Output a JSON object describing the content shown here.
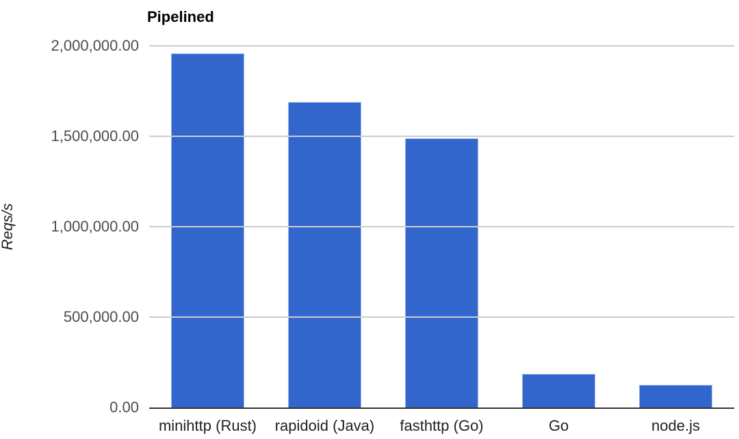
{
  "chart_data": {
    "type": "bar",
    "title": "Pipelined",
    "xlabel": "",
    "ylabel": "Reqs/s",
    "categories": [
      "minihttp (Rust)",
      "rapidoid (Java)",
      "fasthttp (Go)",
      "Go",
      "node.js"
    ],
    "values": [
      1960000,
      1690000,
      1490000,
      185000,
      125000
    ],
    "ylim": [
      0,
      2000000
    ],
    "yticks": [
      {
        "value": 2000000,
        "label": "2,000,000.00"
      },
      {
        "value": 1500000,
        "label": "1,500,000.00"
      },
      {
        "value": 1000000,
        "label": "1,000,000.00"
      },
      {
        "value": 500000,
        "label": "500,000.00"
      },
      {
        "value": 0,
        "label": "0.00"
      }
    ],
    "grid": true,
    "legend": "none",
    "bar_color": "#3366cc",
    "bar_edge_color": "#9fb5e6",
    "gridline_color": "#cccccc",
    "axis_line_color": "#333333",
    "ytick_label_color": "#4d4d4d",
    "xtick_label_color": "#1f1f1f",
    "title_color": "#000000",
    "background_color": "#ffffff"
  }
}
